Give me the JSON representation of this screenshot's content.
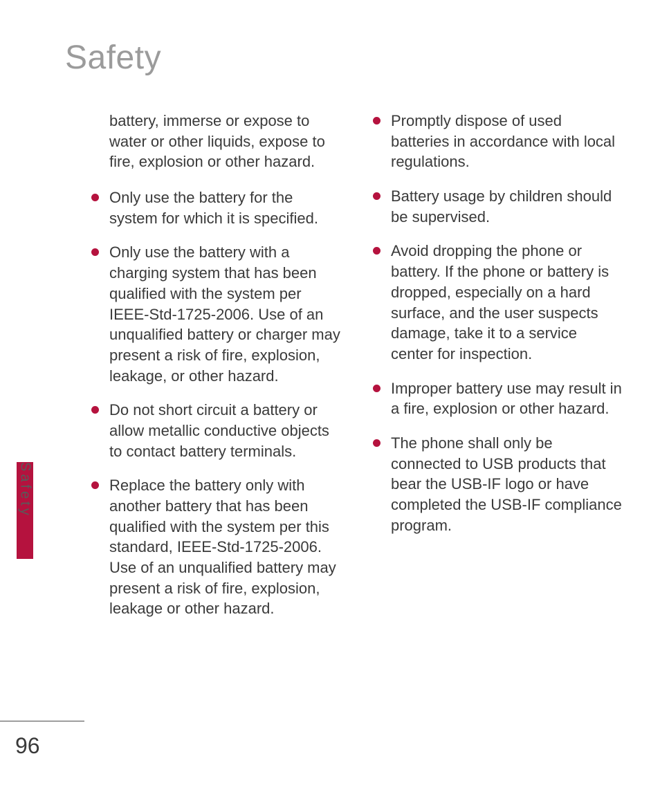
{
  "colors": {
    "title": "#9b9b9b",
    "body_text": "#3a3a3a",
    "bullet": "#b5123e",
    "side_tab_bg": "#b5123e",
    "side_tab_text": "#5a5a5a",
    "rule": "#4a4a4a",
    "page_number": "#3a3a3a",
    "background": "#ffffff"
  },
  "typography": {
    "title_fontsize": 48,
    "body_fontsize": 22,
    "side_tab_fontsize": 20,
    "page_number_fontsize": 32,
    "line_height": 1.35
  },
  "title": "Safety",
  "side_tab_label": "Safety",
  "page_number": "96",
  "left_column": {
    "intro": "battery, immerse or expose to water or other liquids, expose to fire, explosion or other hazard.",
    "bullets": [
      "Only use the battery for the system for which it is specified.",
      "Only use the battery with a charging system that has been qualified with the system per IEEE-Std-1725-2006. Use of an unqualified battery or charger may present a risk of fire, explosion, leakage, or other hazard.",
      "Do not short circuit a battery or allow metallic conductive objects to contact battery terminals.",
      "Replace the battery only with another battery that has been qualified with the system per this standard, IEEE-Std-1725-2006. Use of an unqualified battery may present a risk of fire, explosion, leakage or other hazard."
    ]
  },
  "right_column": {
    "bullets": [
      "Promptly dispose of used batteries in accordance with local regulations.",
      "Battery usage by children should be supervised.",
      "Avoid dropping the phone or battery. If the phone or battery is dropped, especially on a hard surface, and the user suspects damage, take it to a service center for inspection.",
      "Improper battery use may result in a fire, explosion or other hazard.",
      "The phone shall only be connected to USB products that bear the USB-IF logo or have completed the USB-IF compliance program."
    ]
  }
}
